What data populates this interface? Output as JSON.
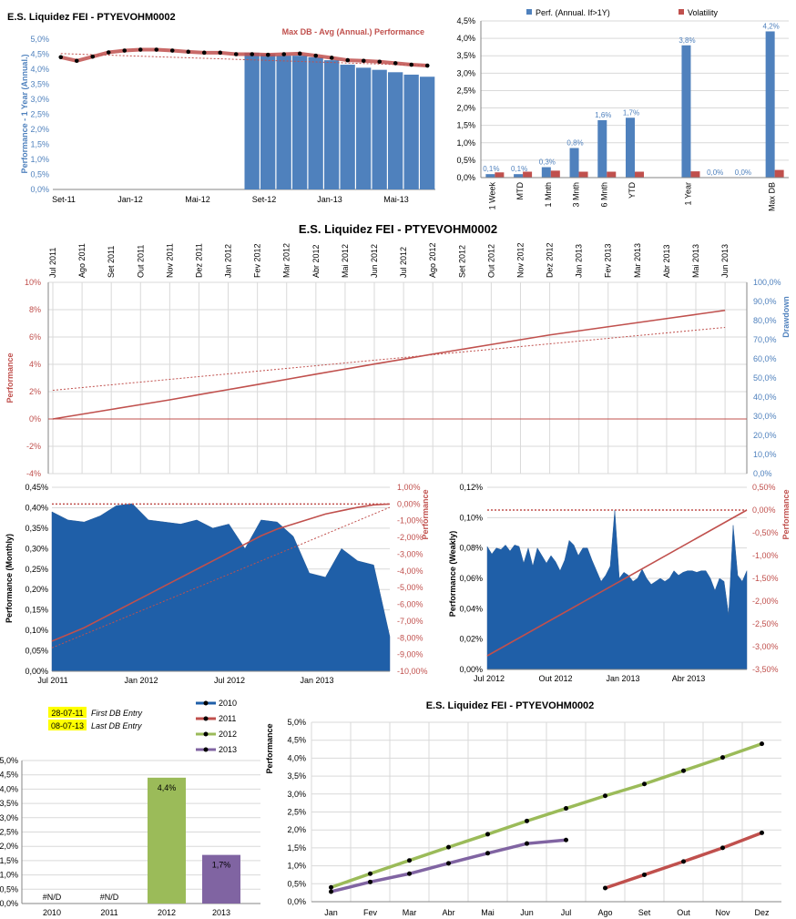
{
  "colors": {
    "blue": "#4f81bd",
    "red": "#c0504d",
    "green": "#9bbb59",
    "purple": "#8064a2",
    "darkblue": "#1f5fa8",
    "yellow": "#ffff00"
  },
  "chart_data": [
    {
      "id": "c1",
      "type": "bar",
      "title": "E.S. Liquidez FEI - PTYEVOHM0002",
      "ylabel": "Performance - 1 Year (Annual.)",
      "legend": "Max DB - Avg (Annual.) Performance",
      "ylim": [
        0,
        5
      ],
      "yticks": [
        "0,0%",
        "0,5%",
        "1,0%",
        "1,5%",
        "2,0%",
        "2,5%",
        "3,0%",
        "3,5%",
        "4,0%",
        "4,5%",
        "5,0%"
      ],
      "xticks": [
        "Set-11",
        "Jan-12",
        "Mai-12",
        "Set-12",
        "Jan-13",
        "Mai-13"
      ],
      "bars": [
        null,
        null,
        null,
        null,
        null,
        null,
        null,
        null,
        null,
        null,
        null,
        null,
        4.55,
        4.5,
        4.45,
        4.45,
        4.4,
        4.3,
        4.15,
        4.05,
        3.98,
        3.9,
        3.82,
        3.75
      ],
      "line": [
        4.4,
        4.28,
        4.42,
        4.56,
        4.62,
        4.65,
        4.65,
        4.62,
        4.58,
        4.55,
        4.55,
        4.5,
        4.5,
        4.48,
        4.5,
        4.52,
        4.45,
        4.38,
        4.3,
        4.28,
        4.25,
        4.2,
        4.15,
        4.12
      ]
    },
    {
      "id": "c2",
      "type": "bar",
      "ylim": [
        0,
        4.5
      ],
      "yticks": [
        "0,0%",
        "0,5%",
        "1,0%",
        "1,5%",
        "2,0%",
        "2,5%",
        "3,0%",
        "3,5%",
        "4,0%",
        "4,5%"
      ],
      "categories": [
        "1 Week",
        "MTD",
        "1 Mnth",
        "3 Mnth",
        "6 Mnth",
        "YTD",
        "",
        "1 Year",
        "",
        "",
        "Max DB"
      ],
      "series": [
        {
          "name": "Perf. (Annual. If>1Y)",
          "values": [
            0.1,
            0.1,
            0.3,
            0.85,
            1.65,
            1.72,
            null,
            3.8,
            0,
            0,
            4.2
          ],
          "labels": [
            "0,1%",
            "0,1%",
            "0,3%",
            "0,8%",
            "1,6%",
            "1,7%",
            "",
            "3,8%",
            "0,0%",
            "0,0%",
            "4,2%"
          ]
        },
        {
          "name": "Volatility",
          "values": [
            0.15,
            0.17,
            0.2,
            0.17,
            0.17,
            0.17,
            null,
            0.18,
            0,
            0,
            0.22
          ]
        }
      ]
    },
    {
      "id": "c3",
      "type": "line",
      "title": "E.S. Liquidez FEI - PTYEVOHM0002",
      "ylabel": "Performance",
      "y2label": "Drawdown",
      "ylim": [
        -4,
        10
      ],
      "y2lim": [
        0,
        100
      ],
      "yticks": [
        "-4%",
        "-2%",
        "0%",
        "2%",
        "4%",
        "6%",
        "8%",
        "10%"
      ],
      "y2ticks": [
        "0,0%",
        "10,0%",
        "20,0%",
        "30,0%",
        "40,0%",
        "50,0%",
        "60,0%",
        "70,0%",
        "80,0%",
        "90,0%",
        "100,0%"
      ],
      "categories": [
        "Jul 2011",
        "Ago 2011",
        "Set 2011",
        "Out 2011",
        "Nov 2011",
        "Dez 2011",
        "Jan 2012",
        "Fev 2012",
        "Mar 2012",
        "Abr 2012",
        "Mai 2012",
        "Jun 2012",
        "Jul 2012",
        "Ago 2012",
        "Set 2012",
        "Out 2012",
        "Nov 2012",
        "Dez 2012",
        "Jan 2013",
        "Fev 2013",
        "Mar 2013",
        "Abr 2013",
        "Mai 2013",
        "Jun 2013"
      ],
      "series": [
        {
          "name": "Performance",
          "values": [
            0,
            0.35,
            0.7,
            1.05,
            1.4,
            1.78,
            2.15,
            2.52,
            2.9,
            3.28,
            3.65,
            4.02,
            4.38,
            4.75,
            5.1,
            5.45,
            5.8,
            6.15,
            6.45,
            6.75,
            7.05,
            7.35,
            7.65,
            7.95
          ]
        },
        {
          "name": "Trend",
          "values": [
            2.1,
            2.3,
            2.5,
            2.7,
            2.9,
            3.1,
            3.3,
            3.5,
            3.7,
            3.9,
            4.1,
            4.3,
            4.5,
            4.7,
            4.9,
            5.1,
            5.3,
            5.5,
            5.7,
            5.9,
            6.1,
            6.3,
            6.5,
            6.7
          ]
        }
      ]
    },
    {
      "id": "c4",
      "type": "area",
      "ylabel": "Performance (Monthly)",
      "y2label": "Performance",
      "ylim": [
        0,
        0.45
      ],
      "y2lim": [
        -10,
        1
      ],
      "yticks": [
        "0,00%",
        "0,05%",
        "0,10%",
        "0,15%",
        "0,20%",
        "0,25%",
        "0,30%",
        "0,35%",
        "0,40%",
        "0,45%"
      ],
      "y2ticks": [
        "-10,00%",
        "-9,00%",
        "-8,00%",
        "-7,00%",
        "-6,00%",
        "-5,00%",
        "-4,00%",
        "-3,00%",
        "-2,00%",
        "-1,00%",
        "0,00%",
        "1,00%"
      ],
      "xticks": [
        "Jul 2011",
        "Jan 2012",
        "Jul 2012",
        "Jan 2013"
      ],
      "series": [
        {
          "name": "Monthly",
          "values": [
            0.39,
            0.37,
            0.365,
            0.38,
            0.405,
            0.41,
            0.37,
            0.365,
            0.36,
            0.37,
            0.35,
            0.36,
            0.3,
            0.37,
            0.365,
            0.33,
            0.24,
            0.23,
            0.3,
            0.27,
            0.26,
            0.085
          ]
        },
        {
          "name": "Cumulative",
          "values": [
            -8.2,
            -7.8,
            -7.4,
            -6.9,
            -6.4,
            -5.9,
            -5.4,
            -4.9,
            -4.4,
            -3.9,
            -3.4,
            -2.9,
            -2.4,
            -1.9,
            -1.5,
            -1.2,
            -0.9,
            -0.6,
            -0.4,
            -0.2,
            -0.05,
            0
          ]
        }
      ]
    },
    {
      "id": "c5",
      "type": "area",
      "ylabel": "Performance (Weakly)",
      "y2label": "Performance",
      "ylim": [
        0,
        0.12
      ],
      "y2lim": [
        -3.5,
        0.5
      ],
      "yticks": [
        "0,00%",
        "0,02%",
        "0,04%",
        "0,06%",
        "0,08%",
        "0,10%",
        "0,12%"
      ],
      "y2ticks": [
        "-3,50%",
        "-3,00%",
        "-2,50%",
        "-2,00%",
        "-1,50%",
        "-1,00%",
        "-0,50%",
        "0,00%",
        "0,50%"
      ],
      "xticks": [
        "Jul 2012",
        "Out 2012",
        "Jan 2013",
        "Abr 2013"
      ],
      "series": [
        {
          "name": "Weekly",
          "values": [
            0.081,
            0.076,
            0.08,
            0.079,
            0.082,
            0.078,
            0.082,
            0.081,
            0.07,
            0.08,
            0.068,
            0.08,
            0.075,
            0.07,
            0.075,
            0.071,
            0.065,
            0.072,
            0.085,
            0.082,
            0.075,
            0.08,
            0.08,
            0.072,
            0.065,
            0.058,
            0.062,
            0.068,
            0.105,
            0.06,
            0.064,
            0.062,
            0.058,
            0.06,
            0.066,
            0.06,
            0.056,
            0.058,
            0.06,
            0.058,
            0.06,
            0.065,
            0.062,
            0.064,
            0.065,
            0.065,
            0.064,
            0.065,
            0.065,
            0.06,
            0.052,
            0.06,
            0.058,
            0.036,
            0.095,
            0.062,
            0.058,
            0.065
          ]
        },
        {
          "name": "Cumulative",
          "values": [
            -3.2,
            0
          ]
        }
      ]
    },
    {
      "id": "c6",
      "type": "bar",
      "ylim": [
        0,
        5
      ],
      "yticks": [
        "0,0%",
        "0,5%",
        "1,0%",
        "1,5%",
        "2,0%",
        "2,5%",
        "3,0%",
        "3,5%",
        "4,0%",
        "4,5%",
        "5,0%"
      ],
      "categories": [
        "2010",
        "2011",
        "2012",
        "2013"
      ],
      "values": [
        null,
        null,
        4.4,
        1.7
      ],
      "labels": [
        "#N/D",
        "#N/D",
        "4,4%",
        "1,7%"
      ]
    },
    {
      "id": "c7",
      "type": "line",
      "title": "E.S. Liquidez FEI - PTYEVOHM0002",
      "ylabel": "Performance",
      "ylim": [
        0,
        5
      ],
      "yticks": [
        "0,0%",
        "0,5%",
        "1,0%",
        "1,5%",
        "2,0%",
        "2,5%",
        "3,0%",
        "3,5%",
        "4,0%",
        "4,5%",
        "5,0%"
      ],
      "categories": [
        "Jan",
        "Fev",
        "Mar",
        "Abr",
        "Mai",
        "Jun",
        "Jul",
        "Ago",
        "Set",
        "Out",
        "Nov",
        "Dez"
      ],
      "series": [
        {
          "name": "2010",
          "values": [
            null,
            null,
            null,
            null,
            null,
            null,
            null,
            null,
            null,
            null,
            null,
            null
          ]
        },
        {
          "name": "2011",
          "values": [
            null,
            null,
            null,
            null,
            null,
            null,
            null,
            0.38,
            0.75,
            1.12,
            1.5,
            1.92
          ]
        },
        {
          "name": "2012",
          "values": [
            0.4,
            0.78,
            1.15,
            1.52,
            1.88,
            2.25,
            2.6,
            2.95,
            3.28,
            3.65,
            4.02,
            4.4
          ]
        },
        {
          "name": "2013",
          "values": [
            0.28,
            0.55,
            0.78,
            1.07,
            1.35,
            1.62,
            1.72,
            null,
            null,
            null,
            null,
            null
          ]
        }
      ]
    }
  ],
  "info": {
    "first_date": "28-07-11",
    "first_label": "First DB Entry",
    "last_date": "08-07-13",
    "last_label": "Last DB Entry"
  }
}
